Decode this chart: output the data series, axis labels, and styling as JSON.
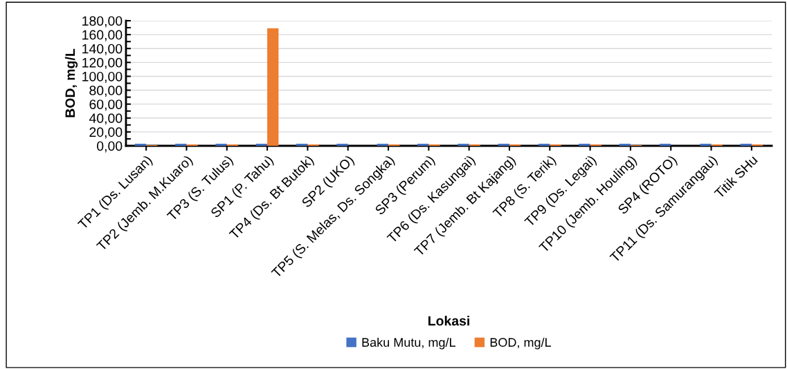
{
  "chart_data": {
    "type": "bar",
    "xlabel": "Lokasi",
    "ylabel": "BOD, mg/L",
    "categories": [
      "TP1 (Ds. Lusan)",
      "TP2 (Jemb. M.Kuaro)",
      "TP3 (S. Tulus)",
      "SP1 (P. Tahu)",
      "TP4 (Ds. Bt Butok)",
      "SP2 (UKO)",
      "TP5 (S. Melas, Ds. Songka)",
      "SP3 (Perum)",
      "TP6 (Ds. Kasungai)",
      "TP7 (Jemb. Bt Kajang)",
      "TP8 (S. Terik)",
      "TP9 (Ds. Legai)",
      "TP10 (Jemb. Houling)",
      "SP4 (ROTO)",
      "TP11 (Ds. Samurangau)",
      "Titik SHu"
    ],
    "series": [
      {
        "name": "Baku Mutu, mg/L",
        "color": "#4472c4",
        "values": [
          3,
          3,
          3,
          3,
          3,
          3,
          3,
          3,
          3,
          3,
          3,
          3,
          3,
          3,
          3,
          3
        ]
      },
      {
        "name": "BOD, mg/L",
        "color": "#ed7d31",
        "values": [
          1,
          2,
          2,
          169,
          2,
          0,
          2,
          2,
          2,
          2,
          2,
          2,
          1,
          0,
          2,
          2
        ]
      }
    ],
    "ylim": [
      0,
      180
    ],
    "yticks": [
      {
        "value": 0,
        "label": "0,00"
      },
      {
        "value": 20,
        "label": "20,00"
      },
      {
        "value": 40,
        "label": "40,00"
      },
      {
        "value": 60,
        "label": "60,00"
      },
      {
        "value": 80,
        "label": "80,00"
      },
      {
        "value": 100,
        "label": "100,00"
      },
      {
        "value": 120,
        "label": "120,00"
      },
      {
        "value": 140,
        "label": "140,00"
      },
      {
        "value": 160,
        "label": "160,00"
      },
      {
        "value": 180,
        "label": "180,00"
      }
    ],
    "grid": "y",
    "legend": "bottom"
  }
}
